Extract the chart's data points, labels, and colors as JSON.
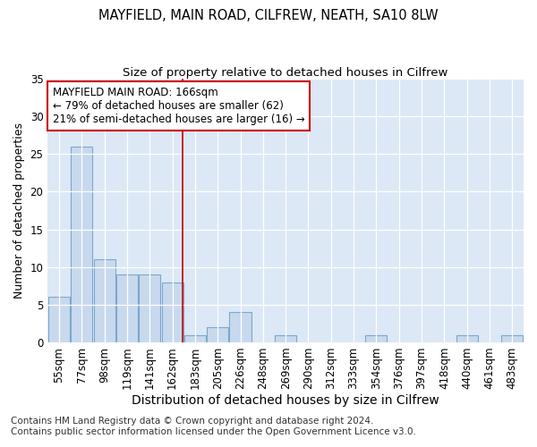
{
  "title": "MAYFIELD, MAIN ROAD, CILFREW, NEATH, SA10 8LW",
  "subtitle": "Size of property relative to detached houses in Cilfrew",
  "xlabel": "Distribution of detached houses by size in Cilfrew",
  "ylabel": "Number of detached properties",
  "bar_categories": [
    "55sqm",
    "77sqm",
    "98sqm",
    "119sqm",
    "141sqm",
    "162sqm",
    "183sqm",
    "205sqm",
    "226sqm",
    "248sqm",
    "269sqm",
    "290sqm",
    "312sqm",
    "333sqm",
    "354sqm",
    "376sqm",
    "397sqm",
    "418sqm",
    "440sqm",
    "461sqm",
    "483sqm"
  ],
  "bar_values": [
    6,
    26,
    11,
    9,
    9,
    8,
    1,
    2,
    4,
    0,
    1,
    0,
    0,
    0,
    1,
    0,
    0,
    0,
    1,
    0,
    1
  ],
  "bar_color": "#c8d9ee",
  "bar_edge_color": "#7aa8cc",
  "property_line_label": "MAYFIELD MAIN ROAD: 166sqm",
  "annotation_line1": "← 79% of detached houses are smaller (62)",
  "annotation_line2": "21% of semi-detached houses are larger (16) →",
  "annotation_box_color": "#ffffff",
  "annotation_box_edge": "#cc0000",
  "vline_color": "#cc0000",
  "vline_x": 5.45,
  "ylim": [
    0,
    35
  ],
  "yticks": [
    0,
    5,
    10,
    15,
    20,
    25,
    30,
    35
  ],
  "footnote1": "Contains HM Land Registry data © Crown copyright and database right 2024.",
  "footnote2": "Contains public sector information licensed under the Open Government Licence v3.0.",
  "bg_color": "#ffffff",
  "plot_bg_color": "#dce8f5",
  "grid_color": "#ffffff",
  "title_fontsize": 10.5,
  "subtitle_fontsize": 9.5,
  "xlabel_fontsize": 10,
  "ylabel_fontsize": 9,
  "tick_fontsize": 8.5,
  "annot_fontsize": 8.5,
  "footnote_fontsize": 7.5
}
